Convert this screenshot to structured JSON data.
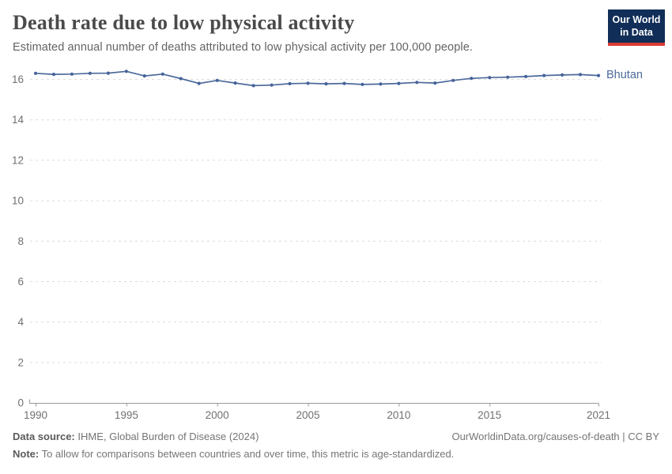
{
  "header": {
    "logo_line1": "Our World",
    "logo_line2": "in Data"
  },
  "chart_data": {
    "type": "line",
    "title": "Death rate due to low physical activity",
    "subtitle": "Estimated annual number of deaths attributed to low physical activity per 100,000 people.",
    "x": [
      1990,
      1991,
      1992,
      1993,
      1994,
      1995,
      1996,
      1997,
      1998,
      1999,
      2000,
      2001,
      2002,
      2003,
      2004,
      2005,
      2006,
      2007,
      2008,
      2009,
      2010,
      2011,
      2012,
      2013,
      2014,
      2015,
      2016,
      2017,
      2018,
      2019,
      2020,
      2021
    ],
    "series": [
      {
        "name": "Bhutan",
        "values": [
          16.3,
          16.25,
          16.26,
          16.3,
          16.31,
          16.4,
          16.17,
          16.26,
          16.04,
          15.8,
          15.95,
          15.82,
          15.69,
          15.72,
          15.79,
          15.81,
          15.78,
          15.8,
          15.75,
          15.77,
          15.8,
          15.85,
          15.82,
          15.95,
          16.05,
          16.09,
          16.11,
          16.14,
          16.19,
          16.22,
          16.24,
          16.19
        ]
      }
    ],
    "xlabel": "",
    "ylabel": "",
    "ylim": [
      0,
      16
    ],
    "yticks": [
      0,
      2,
      4,
      6,
      8,
      10,
      12,
      14,
      16
    ],
    "xticks": [
      1990,
      1995,
      2000,
      2005,
      2010,
      2015,
      2021
    ],
    "grid": "horizontal-dashed",
    "legend_position": "line-end-label"
  },
  "footer": {
    "source_label": "Data source:",
    "source_value": "IHME, Global Burden of Disease (2024)",
    "link": "OurWorldinData.org/causes-of-death | CC BY",
    "note_label": "Note:",
    "note_value": "To allow for comparisons between countries and over time, this metric is age-standardized."
  },
  "colors": {
    "line": "#4c6a9c",
    "marker": "#46639a",
    "grid": "#dcdcdc",
    "axis": "#9a9a9a",
    "tick_label": "#707070",
    "title": "#4a4a4a",
    "subtitle": "#636363",
    "logo_bg": "#102e58",
    "logo_red": "#d93b33",
    "logo_text": "#ffffff"
  }
}
